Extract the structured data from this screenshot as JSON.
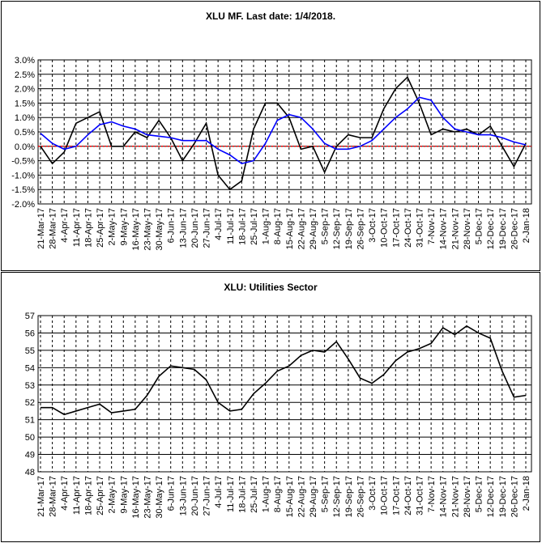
{
  "chart_data": [
    {
      "type": "line",
      "title": "XLU MF. Last date: 1/4/2018.",
      "categories": [
        "21-Mar-17",
        "28-Mar-17",
        "4-Apr-17",
        "11-Apr-17",
        "18-Apr-17",
        "25-Apr-17",
        "2-May-17",
        "9-May-17",
        "16-May-17",
        "23-May-17",
        "30-May-17",
        "6-Jun-17",
        "13-Jun-17",
        "20-Jun-17",
        "27-Jun-17",
        "4-Jul-17",
        "11-Jul-17",
        "18-Jul-17",
        "25-Jul-17",
        "1-Aug-17",
        "8-Aug-17",
        "15-Aug-17",
        "22-Aug-17",
        "29-Aug-17",
        "5-Sep-17",
        "12-Sep-17",
        "19-Sep-17",
        "26-Sep-17",
        "3-Oct-17",
        "10-Oct-17",
        "17-Oct-17",
        "24-Oct-17",
        "31-Oct-17",
        "7-Nov-17",
        "14-Nov-17",
        "21-Nov-17",
        "28-Nov-17",
        "5-Dec-17",
        "12-Dec-17",
        "19-Dec-17",
        "26-Dec-17",
        "2-Jan-18"
      ],
      "series": [
        {
          "color": "#000000",
          "values": [
            0.0,
            -0.6,
            -0.2,
            0.8,
            1.0,
            1.2,
            0.0,
            0.0,
            0.5,
            0.3,
            0.9,
            0.3,
            -0.5,
            0.1,
            0.8,
            -1.0,
            -1.5,
            -1.2,
            0.6,
            1.5,
            1.5,
            1.0,
            -0.1,
            0.0,
            -0.9,
            0.0,
            0.4,
            0.3,
            0.3,
            1.3,
            2.0,
            2.4,
            1.5,
            0.4,
            0.6,
            0.5,
            0.6,
            0.4,
            0.7,
            0.0,
            -0.7,
            0.1
          ]
        },
        {
          "color": "#0000ff",
          "values": [
            0.45,
            0.1,
            -0.1,
            0.0,
            0.4,
            0.75,
            0.85,
            0.7,
            0.6,
            0.4,
            0.35,
            0.3,
            0.2,
            0.2,
            0.2,
            -0.1,
            -0.3,
            -0.6,
            -0.5,
            0.1,
            0.9,
            1.1,
            1.0,
            0.6,
            0.1,
            -0.1,
            -0.1,
            0.0,
            0.2,
            0.6,
            1.0,
            1.3,
            1.7,
            1.6,
            1.0,
            0.6,
            0.5,
            0.4,
            0.4,
            0.3,
            0.15,
            0.05
          ]
        }
      ],
      "hline": {
        "value": 0,
        "color": "#ff0000"
      },
      "ylim": [
        -2.0,
        3.0
      ],
      "yticks": [
        {
          "value": -2.0,
          "label": "-2.0%"
        },
        {
          "value": -1.5,
          "label": "-1.5%"
        },
        {
          "value": -1.0,
          "label": "-1.0%"
        },
        {
          "value": -0.5,
          "label": "-0.5%"
        },
        {
          "value": 0.0,
          "label": "0.0%"
        },
        {
          "value": 0.5,
          "label": "0.5%"
        },
        {
          "value": 1.0,
          "label": "1.0%"
        },
        {
          "value": 1.5,
          "label": "1.5%"
        },
        {
          "value": 2.0,
          "label": "2.0%"
        },
        {
          "value": 2.5,
          "label": "2.5%"
        },
        {
          "value": 3.0,
          "label": "3.0%"
        }
      ],
      "grid": true
    },
    {
      "type": "line",
      "title": "XLU: Utilities Sector",
      "categories": [
        "21-Mar-17",
        "28-Mar-17",
        "4-Apr-17",
        "11-Apr-17",
        "18-Apr-17",
        "25-Apr-17",
        "2-May-17",
        "9-May-17",
        "16-May-17",
        "23-May-17",
        "30-May-17",
        "6-Jun-17",
        "13-Jun-17",
        "20-Jun-17",
        "27-Jun-17",
        "4-Jul-17",
        "11-Jul-17",
        "18-Jul-17",
        "25-Jul-17",
        "1-Aug-17",
        "8-Aug-17",
        "15-Aug-17",
        "22-Aug-17",
        "29-Aug-17",
        "5-Sep-17",
        "12-Sep-17",
        "19-Sep-17",
        "26-Sep-17",
        "3-Oct-17",
        "10-Oct-17",
        "17-Oct-17",
        "24-Oct-17",
        "31-Oct-17",
        "7-Nov-17",
        "14-Nov-17",
        "21-Nov-17",
        "28-Nov-17",
        "5-Dec-17",
        "12-Dec-17",
        "19-Dec-17",
        "26-Dec-17",
        "2-Jan-18"
      ],
      "series": [
        {
          "color": "#000000",
          "values": [
            51.7,
            51.7,
            51.3,
            51.5,
            51.7,
            51.9,
            51.4,
            51.5,
            51.6,
            52.4,
            53.5,
            54.1,
            54.0,
            53.9,
            53.3,
            52.0,
            51.5,
            51.6,
            52.5,
            53.1,
            53.8,
            54.1,
            54.7,
            55.0,
            54.9,
            55.5,
            54.5,
            53.4,
            53.1,
            53.6,
            54.4,
            54.9,
            55.1,
            55.4,
            56.3,
            55.9,
            56.4,
            56.0,
            55.7,
            53.8,
            52.3,
            52.4
          ]
        }
      ],
      "ylim": [
        48,
        57
      ],
      "yticks": [
        48,
        49,
        50,
        51,
        52,
        53,
        54,
        55,
        56,
        57
      ],
      "grid": true
    }
  ]
}
